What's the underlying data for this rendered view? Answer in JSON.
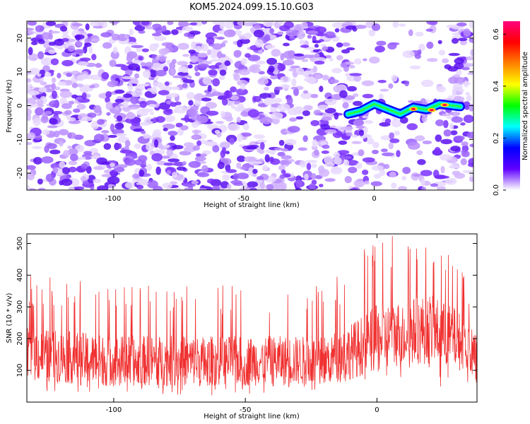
{
  "title": "KOM5.2024.099.15.10.G03",
  "colors": {
    "snr_line": "#f03030",
    "axis": "#000000"
  },
  "chart_data": [
    {
      "type": "heatmap",
      "xlabel": "Height of straight line (km)",
      "ylabel": "Frequency (Hz)",
      "xlim": [
        -133,
        38
      ],
      "ylim": [
        -25,
        25
      ],
      "x_ticks": [
        -100,
        -50,
        0
      ],
      "y_ticks": [
        -20,
        -10,
        0,
        10,
        20
      ],
      "colorbar": {
        "label": "Normalized spectral amplitude",
        "range": [
          0.0,
          0.65
        ],
        "ticks": [
          "0.0",
          "0.2",
          "0.4",
          "0.6"
        ],
        "colormap": [
          "#ffffff",
          "#6000ff",
          "#0000ff",
          "#00ffff",
          "#00ff00",
          "#ffff00",
          "#ff8000",
          "#ff0000",
          "#ff0080"
        ]
      },
      "signal_trace": {
        "x": [
          -10,
          -5,
          0,
          5,
          10,
          15,
          20,
          25,
          30,
          33
        ],
        "y": [
          -2.5,
          -1.5,
          0.5,
          -1.0,
          -2.5,
          -0.5,
          -1.2,
          0.5,
          0.0,
          -0.3
        ],
        "peak_amplitude": 0.62
      },
      "background_amplitude": 0.15
    },
    {
      "type": "line",
      "xlabel": "Height of straight line (km)",
      "ylabel": "SNR (10 * v/v)",
      "xlim": [
        -133,
        38
      ],
      "ylim": [
        0,
        530
      ],
      "x_ticks": [
        -100,
        -50,
        0
      ],
      "y_ticks": [
        100,
        200,
        300,
        400,
        500
      ],
      "series": [
        {
          "envelope_x": [
            -133,
            -100,
            -60,
            -20,
            -10,
            0,
            10,
            20,
            30,
            38
          ],
          "envelope_mean": [
            150,
            130,
            130,
            130,
            160,
            200,
            220,
            230,
            200,
            150
          ],
          "envelope_max": [
            400,
            380,
            370,
            380,
            430,
            530,
            530,
            530,
            460,
            340
          ],
          "envelope_min": [
            20,
            20,
            20,
            30,
            40,
            60,
            60,
            40,
            30,
            40
          ]
        }
      ]
    }
  ]
}
